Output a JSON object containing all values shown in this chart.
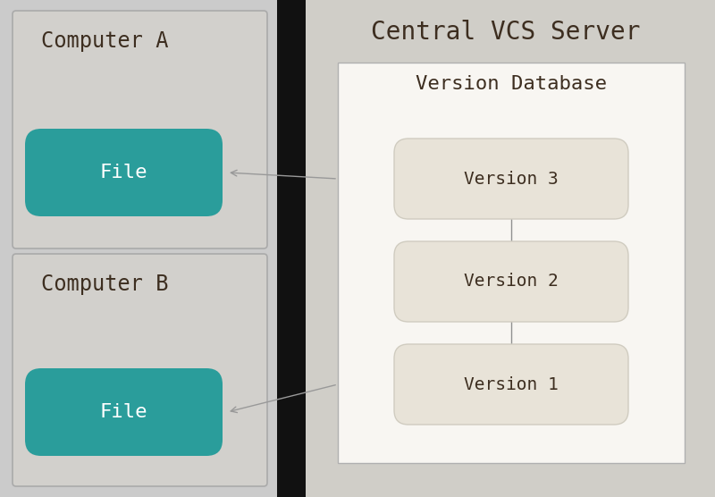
{
  "bg_color": "#cbcbcb",
  "title": "Central VCS Server",
  "title_fontsize": 20,
  "font": "monospace",
  "computer_a_label": "Computer A",
  "computer_b_label": "Computer B",
  "file_label": "File",
  "version_db_label": "Version Database",
  "version_labels": [
    "Version 3",
    "Version 2",
    "Version 1"
  ],
  "teal_color": "#2a9d9b",
  "file_text_color": "#ffffff",
  "version_pill_color": "#e8e3d8",
  "version_text_color": "#3d2e20",
  "label_text_color": "#3d2e20",
  "server_bg_color": "#d0cec8",
  "version_db_box_color": "#f8f6f2",
  "black_divider": "#111111",
  "arrow_color": "#999999",
  "comp_box_color": "#d2d0cc",
  "comp_box_edge": "#aaaaaa"
}
